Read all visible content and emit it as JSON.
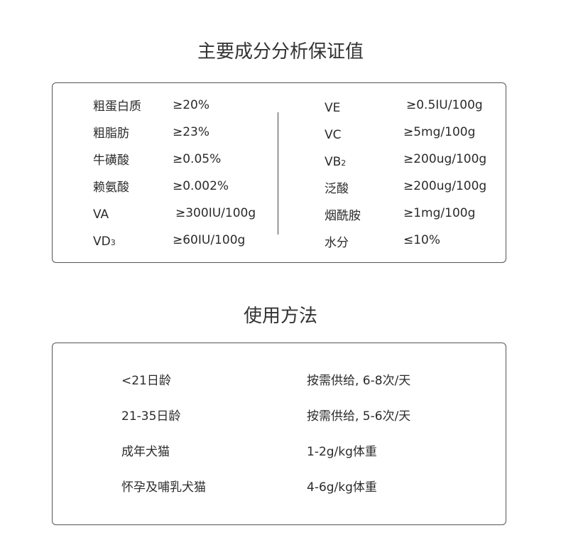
{
  "analysis": {
    "title": "主要成分分析保证值",
    "left": [
      {
        "label": "粗蛋白质",
        "sub": "",
        "value": "≥20%"
      },
      {
        "label": "粗脂肪",
        "sub": "",
        "value": "≥23%"
      },
      {
        "label": "牛磺酸",
        "sub": "",
        "value": "≥0.05%"
      },
      {
        "label": "赖氨酸",
        "sub": "",
        "value": "≥0.002%"
      },
      {
        "label": "VA",
        "sub": "",
        "value": "≥300IU/100g"
      },
      {
        "label": "VD",
        "sub": "3",
        "value": "≥60IU/100g"
      }
    ],
    "right": [
      {
        "label": "VE",
        "sub": "",
        "value": "≥0.5IU/100g"
      },
      {
        "label": "VC",
        "sub": "",
        "value": "≥5mg/100g"
      },
      {
        "label": "VB",
        "sub": "2",
        "value": "≥200ug/100g"
      },
      {
        "label": "泛酸",
        "sub": "",
        "value": "≥200ug/100g"
      },
      {
        "label": "烟酰胺",
        "sub": "",
        "value": "≥1mg/100g"
      },
      {
        "label": "水分",
        "sub": "",
        "value": "≤10%"
      }
    ]
  },
  "usage": {
    "title": "使用方法",
    "rows": [
      {
        "label": "<21日龄",
        "value": "按需供给, 6-8次/天"
      },
      {
        "label": "21-35日龄",
        "value": "按需供给, 5-6次/天"
      },
      {
        "label": "成年犬猫",
        "value": "1-2g/kg体重"
      },
      {
        "label": "怀孕及哺乳犬猫",
        "value": "4-6g/kg体重"
      }
    ]
  }
}
